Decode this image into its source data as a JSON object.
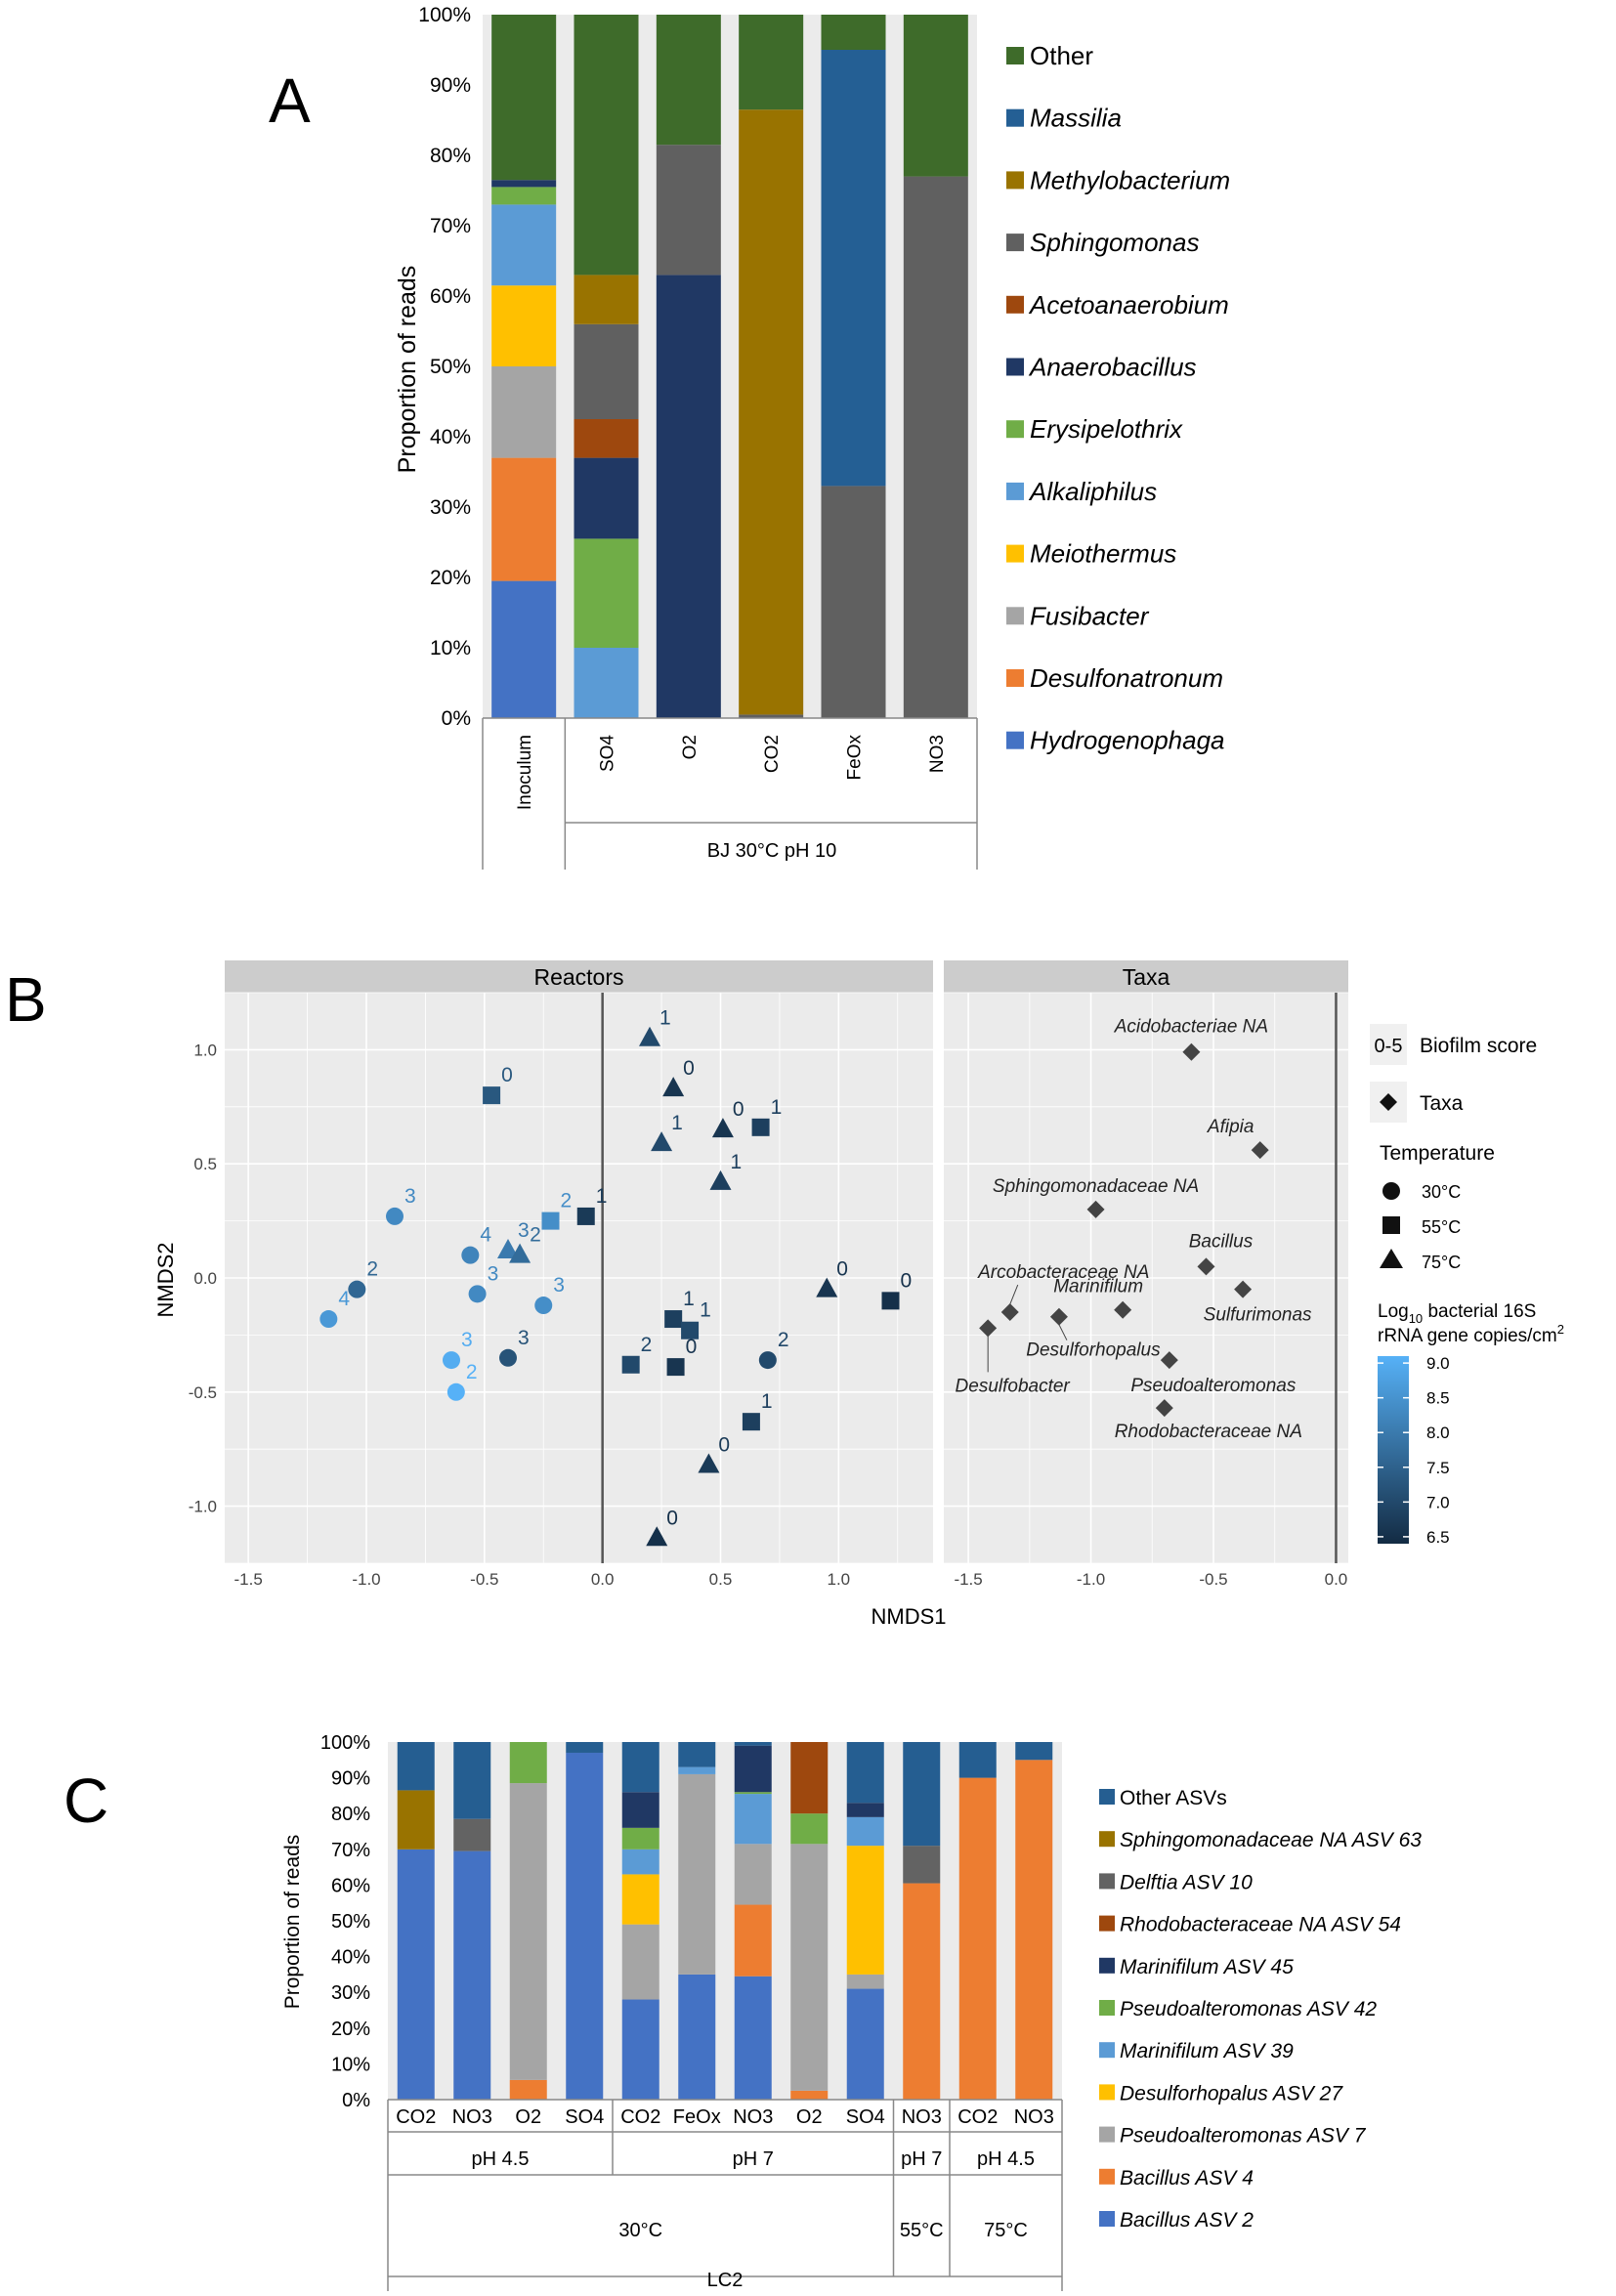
{
  "colors": {
    "grid_bg": "#ebebeb",
    "facet_strip": "#cccccc",
    "taxa_diamond": "#444444",
    "c_other": "#3e6b2a",
    "c_massilia": "#245f94",
    "c_methylo": "#997300",
    "c_sphingo": "#606060",
    "c_aceto": "#9e480e",
    "c_anaero": "#203864",
    "c_erysi": "#70ad47",
    "c_alkali": "#5b9bd5",
    "c_meio": "#ffc000",
    "c_fusi": "#a5a5a5",
    "c_desulfo": "#ed7d31",
    "c_hydro": "#4472c4",
    "c_other_asv": "#255e91",
    "c_sph63": "#997300",
    "c_delftia": "#636363",
    "c_rhodo54": "#9e480e",
    "c_mar45": "#203864",
    "c_pseudo42": "#70ad47",
    "c_mar39": "#5b9bd5",
    "c_desulforho27": "#ffc000",
    "c_pseudo7": "#a5a5a5",
    "c_bac4": "#ed7d31",
    "c_bac2": "#4472c4"
  },
  "panels": {
    "a": "A",
    "b": "B",
    "c": "C"
  },
  "chart_data": [
    {
      "type": "bar",
      "stacked": true,
      "title": "",
      "ylabel": "Proportion of reads",
      "ylim": [
        0,
        100
      ],
      "yticks": [
        "0%",
        "10%",
        "20%",
        "30%",
        "40%",
        "50%",
        "60%",
        "70%",
        "80%",
        "90%",
        "100%"
      ],
      "categories": [
        "Inoculum",
        "SO4",
        "O2",
        "CO2",
        "FeOx",
        "NO3"
      ],
      "group_label": "BJ 30°C pH 10",
      "legend": [
        "Other",
        "Massilia",
        "Methylobacterium",
        "Sphingomonas",
        "Acetoanaerobium",
        "Anaerobacillus",
        "Erysipelothrix",
        "Alkaliphilus",
        "Meiothermus",
        "Fusibacter",
        "Desulfonatronum",
        "Hydrogenophaga"
      ],
      "series": [
        {
          "name": "Hydrogenophaga",
          "color_key": "c_hydro",
          "values": [
            19.5,
            0,
            0,
            0,
            0,
            0
          ]
        },
        {
          "name": "Desulfonatronum",
          "color_key": "c_desulfo",
          "values": [
            17.5,
            0,
            0,
            0,
            0,
            0
          ]
        },
        {
          "name": "Fusibacter",
          "color_key": "c_fusi",
          "values": [
            13,
            0,
            0,
            0,
            0,
            0
          ]
        },
        {
          "name": "Meiothermus",
          "color_key": "c_meio",
          "values": [
            11.5,
            0,
            0,
            0,
            0,
            0
          ]
        },
        {
          "name": "Alkaliphilus",
          "color_key": "c_alkali",
          "values": [
            11.5,
            10,
            0,
            0,
            0,
            0
          ]
        },
        {
          "name": "Erysipelothrix",
          "color_key": "c_erysi",
          "values": [
            2.5,
            15.5,
            0,
            0,
            0,
            0
          ]
        },
        {
          "name": "Anaerobacillus",
          "color_key": "c_anaero",
          "values": [
            1,
            11.5,
            63,
            0,
            0,
            0
          ]
        },
        {
          "name": "Acetoanaerobium",
          "color_key": "c_aceto",
          "values": [
            0,
            5.5,
            0,
            0,
            0,
            0
          ]
        },
        {
          "name": "Sphingomonas",
          "color_key": "c_sphingo",
          "values": [
            0,
            13.5,
            18.5,
            0.5,
            33,
            77
          ]
        },
        {
          "name": "Methylobacterium",
          "color_key": "c_methylo",
          "values": [
            0,
            7,
            0,
            86,
            0,
            0
          ]
        },
        {
          "name": "Massilia",
          "color_key": "c_massilia",
          "values": [
            0,
            0,
            0,
            0,
            62,
            0
          ]
        },
        {
          "name": "Other",
          "color_key": "c_other",
          "values": [
            23.5,
            37,
            18.5,
            13.5,
            5,
            23
          ]
        }
      ]
    },
    {
      "type": "scatter",
      "xlabel": "NMDS1",
      "ylabel": "NMDS2",
      "facets": [
        "Reactors",
        "Taxa"
      ],
      "reactors_xlim": [
        -1.6,
        1.4
      ],
      "taxa_xlim": [
        -1.6,
        0.05
      ],
      "ylim": [
        -1.25,
        1.25
      ],
      "reactors_xticks": [
        "-1.5",
        "-1.0",
        "-0.5",
        "0.0",
        "0.5",
        "1.0"
      ],
      "taxa_xticks": [
        "-1.5",
        "-1.0",
        "-0.5",
        "0.0"
      ],
      "yticks": [
        "-1.0",
        "-0.5",
        "0.0",
        "0.5",
        "1.0"
      ],
      "legend": {
        "biofilm_key": "0-5",
        "biofilm_label": "Biofilm score",
        "taxa_label": "Taxa",
        "temperature_title": "Temperature",
        "temperatures": [
          "30°C",
          "55°C",
          "75°C"
        ],
        "gradient_title_1": "Log",
        "gradient_title_sub": "10",
        "gradient_title_2": " bacterial 16S",
        "gradient_title_3": "rRNA gene copies/cm",
        "gradient_title_sup": "2",
        "gradient_range": [
          6.4,
          9.1
        ],
        "gradient_ticks": [
          "9.0",
          "8.5",
          "8.0",
          "7.5",
          "7.0",
          "6.5"
        ]
      },
      "reactor_points": [
        {
          "x": -0.47,
          "y": 0.8,
          "shape": "square",
          "label": "0",
          "log": 7.3
        },
        {
          "x": -0.88,
          "y": 0.27,
          "shape": "circle",
          "label": "3",
          "log": 8.3
        },
        {
          "x": -0.22,
          "y": 0.25,
          "shape": "square",
          "label": "2",
          "log": 8.4
        },
        {
          "x": -0.07,
          "y": 0.27,
          "shape": "square",
          "label": "1",
          "log": 6.7
        },
        {
          "x": -0.56,
          "y": 0.1,
          "shape": "circle",
          "label": "4",
          "log": 8.2
        },
        {
          "x": -0.4,
          "y": 0.12,
          "shape": "triangle",
          "label": "3",
          "log": 8.0
        },
        {
          "x": -0.35,
          "y": 0.1,
          "shape": "triangle",
          "label": "2",
          "log": 7.7
        },
        {
          "x": -1.04,
          "y": -0.05,
          "shape": "circle",
          "label": "2",
          "log": 7.6
        },
        {
          "x": -0.53,
          "y": -0.07,
          "shape": "circle",
          "label": "3",
          "log": 8.3
        },
        {
          "x": -0.25,
          "y": -0.12,
          "shape": "circle",
          "label": "3",
          "log": 8.4
        },
        {
          "x": -1.16,
          "y": -0.18,
          "shape": "circle",
          "label": "4",
          "log": 8.6
        },
        {
          "x": -0.4,
          "y": -0.35,
          "shape": "circle",
          "label": "3",
          "log": 7.2
        },
        {
          "x": -0.64,
          "y": -0.36,
          "shape": "circle",
          "label": "3",
          "log": 9.0
        },
        {
          "x": -0.62,
          "y": -0.5,
          "shape": "circle",
          "label": "2",
          "log": 9.1
        },
        {
          "x": 0.2,
          "y": 1.05,
          "shape": "triangle",
          "label": "1",
          "log": 7.0
        },
        {
          "x": 0.3,
          "y": 0.83,
          "shape": "triangle",
          "label": "0",
          "log": 6.6
        },
        {
          "x": 0.25,
          "y": 0.59,
          "shape": "triangle",
          "label": "1",
          "log": 7.0
        },
        {
          "x": 0.51,
          "y": 0.65,
          "shape": "triangle",
          "label": "0",
          "log": 6.6
        },
        {
          "x": 0.67,
          "y": 0.66,
          "shape": "square",
          "label": "1",
          "log": 6.8
        },
        {
          "x": 0.5,
          "y": 0.42,
          "shape": "triangle",
          "label": "1",
          "log": 6.8
        },
        {
          "x": 0.95,
          "y": -0.05,
          "shape": "triangle",
          "label": "0",
          "log": 6.6
        },
        {
          "x": 1.22,
          "y": -0.1,
          "shape": "square",
          "label": "0",
          "log": 6.5
        },
        {
          "x": 0.3,
          "y": -0.18,
          "shape": "square",
          "label": "1",
          "log": 6.8
        },
        {
          "x": 0.37,
          "y": -0.23,
          "shape": "square",
          "label": "1",
          "log": 7.0
        },
        {
          "x": 0.12,
          "y": -0.38,
          "shape": "square",
          "label": "2",
          "log": 7.0
        },
        {
          "x": 0.31,
          "y": -0.39,
          "shape": "square",
          "label": "0",
          "log": 6.6
        },
        {
          "x": 0.7,
          "y": -0.36,
          "shape": "circle",
          "label": "2",
          "log": 7.0
        },
        {
          "x": 0.63,
          "y": -0.63,
          "shape": "square",
          "label": "1",
          "log": 6.8
        },
        {
          "x": 0.45,
          "y": -0.82,
          "shape": "triangle",
          "label": "0",
          "log": 6.7
        },
        {
          "x": 0.23,
          "y": -1.14,
          "shape": "triangle",
          "label": "0",
          "log": 6.5
        }
      ],
      "taxa_points": [
        {
          "x": -0.59,
          "y": 0.99,
          "label": "Acidobacteriae NA"
        },
        {
          "x": -0.31,
          "y": 0.56,
          "label": "Afipia"
        },
        {
          "x": -0.98,
          "y": 0.3,
          "label": "Sphingomonadaceae NA"
        },
        {
          "x": -0.53,
          "y": 0.05,
          "label": "Bacillus"
        },
        {
          "x": -0.38,
          "y": -0.05,
          "label": "Sulfurimonas"
        },
        {
          "x": -0.87,
          "y": -0.14,
          "label": "Marinifilum"
        },
        {
          "x": -1.33,
          "y": -0.15,
          "label": "Arcobacteraceae NA"
        },
        {
          "x": -1.13,
          "y": -0.17,
          "label": "Desulforhopalus"
        },
        {
          "x": -1.42,
          "y": -0.22,
          "label": "Desulfobacter"
        },
        {
          "x": -0.68,
          "y": -0.36,
          "label": "Pseudoalteromonas"
        },
        {
          "x": -0.7,
          "y": -0.57,
          "label": "Rhodobacteraceae NA"
        }
      ]
    },
    {
      "type": "bar",
      "stacked": true,
      "title": "",
      "ylabel": "Proportion of reads",
      "ylim": [
        0,
        100
      ],
      "yticks": [
        "0%",
        "10%",
        "20%",
        "30%",
        "40%",
        "50%",
        "60%",
        "70%",
        "80%",
        "90%",
        "100%"
      ],
      "categories": [
        "CO2",
        "NO3",
        "O2",
        "SO4",
        "CO2",
        "FeOx",
        "NO3",
        "O2",
        "SO4",
        "NO3",
        "CO2",
        "NO3"
      ],
      "group_ph": [
        "pH 4.5",
        "pH 7",
        "pH 7",
        "pH 4.5"
      ],
      "group_temp": [
        "30°C",
        "55°C",
        "75°C"
      ],
      "group_reactor": "LC2",
      "legend": [
        "Other ASVs",
        "Sphingomonadaceae NA ASV 63",
        "Delftia ASV 10",
        "Rhodobacteraceae NA ASV 54",
        "Marinifilum ASV 45",
        "Pseudoalteromonas ASV 42",
        "Marinifilum ASV 39",
        "Desulforhopalus ASV 27",
        "Pseudoalteromonas ASV 7",
        "Bacillus ASV 4",
        "Bacillus ASV 2"
      ],
      "series": [
        {
          "name": "Bacillus ASV 2",
          "color_key": "c_bac2",
          "values": [
            70,
            69.5,
            0,
            97,
            28,
            35,
            34.5,
            0,
            31,
            0,
            0,
            0
          ]
        },
        {
          "name": "Bacillus ASV 4",
          "color_key": "c_bac4",
          "values": [
            0,
            0,
            5.5,
            0,
            0,
            0,
            20,
            2.5,
            0,
            60.5,
            90,
            95
          ]
        },
        {
          "name": "Pseudoalteromonas ASV 7",
          "color_key": "c_pseudo7",
          "values": [
            0,
            0,
            83,
            0,
            21,
            56,
            17,
            69,
            4,
            0,
            0,
            0
          ]
        },
        {
          "name": "Desulforhopalus ASV 27",
          "color_key": "c_desulforho27",
          "values": [
            0,
            0,
            0,
            0,
            14,
            0,
            0,
            0,
            36,
            0,
            0,
            0
          ]
        },
        {
          "name": "Marinifilum ASV 39",
          "color_key": "c_mar39",
          "values": [
            0,
            0,
            0,
            0,
            7,
            2,
            14,
            0,
            8,
            0,
            0,
            0
          ]
        },
        {
          "name": "Pseudoalteromonas ASV 42",
          "color_key": "c_pseudo42",
          "values": [
            0,
            0,
            11.5,
            0,
            6,
            0,
            0.5,
            8.5,
            0,
            0,
            0,
            0
          ]
        },
        {
          "name": "Marinifilum ASV 45",
          "color_key": "c_mar45",
          "values": [
            0,
            0,
            0,
            0,
            10,
            0,
            13,
            0,
            4,
            0,
            0,
            0
          ]
        },
        {
          "name": "Rhodobacteraceae NA ASV 54",
          "color_key": "c_rhodo54",
          "values": [
            0,
            0,
            0,
            0,
            0,
            0,
            0,
            20,
            0,
            0,
            0,
            0
          ]
        },
        {
          "name": "Delftia ASV 10",
          "color_key": "c_delftia",
          "values": [
            0,
            9,
            0,
            0,
            0,
            0,
            0,
            0,
            0,
            10.5,
            0,
            0
          ]
        },
        {
          "name": "Sphingomonadaceae NA ASV 63",
          "color_key": "c_sph63",
          "values": [
            16.5,
            0,
            0,
            0,
            0,
            0,
            0,
            0,
            0,
            0,
            0,
            0
          ]
        },
        {
          "name": "Other ASVs",
          "color_key": "c_other_asv",
          "values": [
            13.5,
            21.5,
            0,
            3,
            14,
            7,
            1,
            0,
            17,
            29,
            10,
            5
          ]
        }
      ]
    }
  ]
}
